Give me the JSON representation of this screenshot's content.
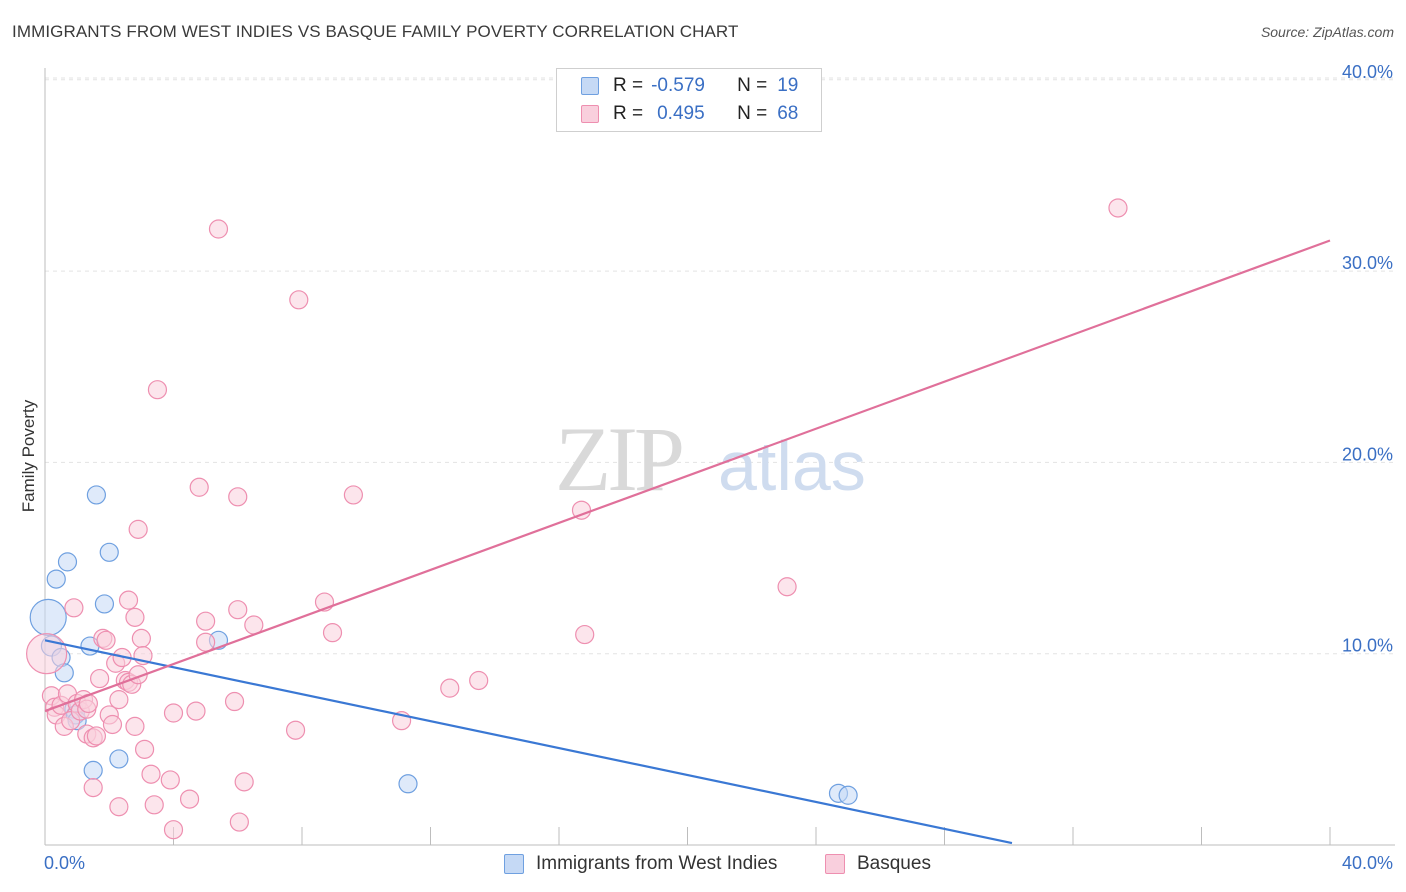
{
  "header": {
    "title": "IMMIGRANTS FROM WEST INDIES VS BASQUE FAMILY POVERTY CORRELATION CHART",
    "source": "Source: ZipAtlas.com"
  },
  "watermark": {
    "zip": "ZIP",
    "atlas": "atlas"
  },
  "legend": {
    "rows": [
      {
        "r_label": "R =",
        "r_value": "-0.579",
        "n_label": "N =",
        "n_value": "19",
        "color": "#6fa0e0",
        "fill": "#c5d9f5"
      },
      {
        "r_label": "R =",
        "r_value": "0.495",
        "n_label": "N =",
        "n_value": "68",
        "color": "#ee8fb0",
        "fill": "#f9cfdd"
      }
    ]
  },
  "bottom_legend": {
    "items": [
      {
        "label": "Immigrants from West Indies",
        "color": "#6fa0e0",
        "fill": "#c5d9f5"
      },
      {
        "label": "Basques",
        "color": "#ee8fb0",
        "fill": "#f9cfdd"
      }
    ]
  },
  "chart_data": {
    "type": "scatter",
    "title": "IMMIGRANTS FROM WEST INDIES VS BASQUE FAMILY POVERTY CORRELATION CHART",
    "xlabel": "",
    "ylabel": "Family Poverty",
    "xlim": [
      0,
      40
    ],
    "ylim": [
      0,
      40
    ],
    "x_tick_labels": [
      "0.0%",
      "40.0%"
    ],
    "y_ticks": [
      10,
      20,
      30,
      40
    ],
    "y_tick_labels": [
      "10.0%",
      "20.0%",
      "30.0%",
      "40.0%"
    ],
    "grid": true,
    "series": [
      {
        "name": "Immigrants from West Indies",
        "color": "#3a78d4",
        "fill": "#c5d9f5",
        "stroke": "#6fa0e0",
        "points": [
          [
            0.1,
            11.9,
            18
          ],
          [
            0.2,
            10.4,
            10
          ],
          [
            0.35,
            13.9,
            9
          ],
          [
            0.5,
            9.8,
            9
          ],
          [
            0.6,
            9.0,
            9
          ],
          [
            0.7,
            14.8,
            9
          ],
          [
            0.9,
            7.1,
            9
          ],
          [
            0.95,
            6.8,
            9
          ],
          [
            1.0,
            6.5,
            9
          ],
          [
            1.4,
            10.4,
            9
          ],
          [
            1.5,
            3.9,
            9
          ],
          [
            1.6,
            18.3,
            9
          ],
          [
            1.85,
            12.6,
            9
          ],
          [
            2.0,
            15.3,
            9
          ],
          [
            2.3,
            4.5,
            9
          ],
          [
            5.4,
            10.7,
            9
          ],
          [
            11.3,
            3.2,
            9
          ],
          [
            24.7,
            2.7,
            9
          ],
          [
            25.0,
            2.6,
            9
          ]
        ],
        "trend": {
          "x": [
            0,
            30.1
          ],
          "y": [
            10.7,
            0.1
          ]
        }
      },
      {
        "name": "Basques",
        "color": "#e0709a",
        "fill": "#f9cfdd",
        "stroke": "#ee8fb0",
        "points": [
          [
            0.05,
            10.0,
            20
          ],
          [
            0.2,
            7.8,
            9
          ],
          [
            0.3,
            7.2,
            9
          ],
          [
            0.35,
            6.8,
            9
          ],
          [
            0.5,
            7.3,
            9
          ],
          [
            0.6,
            6.2,
            9
          ],
          [
            0.7,
            7.9,
            9
          ],
          [
            0.8,
            6.5,
            9
          ],
          [
            0.9,
            12.4,
            9
          ],
          [
            1.0,
            7.4,
            9
          ],
          [
            1.1,
            7.0,
            9
          ],
          [
            1.2,
            7.6,
            9
          ],
          [
            1.3,
            7.1,
            9
          ],
          [
            1.3,
            5.8,
            9
          ],
          [
            1.35,
            7.4,
            9
          ],
          [
            1.5,
            5.6,
            9
          ],
          [
            1.5,
            3.0,
            9
          ],
          [
            1.6,
            5.7,
            9
          ],
          [
            1.7,
            8.7,
            9
          ],
          [
            1.8,
            10.8,
            9
          ],
          [
            1.9,
            10.7,
            9
          ],
          [
            2.0,
            6.8,
            9
          ],
          [
            2.1,
            6.3,
            9
          ],
          [
            2.2,
            9.5,
            9
          ],
          [
            2.3,
            7.6,
            9
          ],
          [
            2.3,
            2.0,
            9
          ],
          [
            2.4,
            9.8,
            9
          ],
          [
            2.5,
            8.6,
            9
          ],
          [
            2.6,
            8.5,
            9
          ],
          [
            2.6,
            12.8,
            9
          ],
          [
            2.7,
            8.4,
            9
          ],
          [
            2.8,
            11.9,
            9
          ],
          [
            2.8,
            6.2,
            9
          ],
          [
            2.9,
            8.9,
            9
          ],
          [
            2.9,
            16.5,
            9
          ],
          [
            3.0,
            10.8,
            9
          ],
          [
            3.05,
            9.9,
            9
          ],
          [
            3.1,
            5.0,
            9
          ],
          [
            3.3,
            3.7,
            9
          ],
          [
            3.4,
            2.1,
            9
          ],
          [
            3.5,
            23.8,
            9
          ],
          [
            3.9,
            3.4,
            9
          ],
          [
            4.0,
            0.8,
            9
          ],
          [
            4.0,
            6.9,
            9
          ],
          [
            4.5,
            2.4,
            9
          ],
          [
            4.7,
            7.0,
            9
          ],
          [
            4.8,
            18.7,
            9
          ],
          [
            5.0,
            11.7,
            9
          ],
          [
            5.0,
            10.6,
            9
          ],
          [
            5.4,
            32.2,
            9
          ],
          [
            5.9,
            7.5,
            9
          ],
          [
            6.0,
            12.3,
            9
          ],
          [
            6.0,
            18.2,
            9
          ],
          [
            6.05,
            1.2,
            9
          ],
          [
            6.2,
            3.3,
            9
          ],
          [
            6.5,
            11.5,
            9
          ],
          [
            7.8,
            6.0,
            9
          ],
          [
            7.9,
            28.5,
            9
          ],
          [
            8.7,
            12.7,
            9
          ],
          [
            8.95,
            11.1,
            9
          ],
          [
            9.6,
            18.3,
            9
          ],
          [
            11.1,
            6.5,
            9
          ],
          [
            12.6,
            8.2,
            9
          ],
          [
            13.5,
            8.6,
            9
          ],
          [
            16.7,
            17.5,
            9
          ],
          [
            16.8,
            11.0,
            9
          ],
          [
            23.1,
            13.5,
            9
          ],
          [
            33.4,
            33.3,
            9
          ]
        ],
        "trend": {
          "x": [
            0,
            40
          ],
          "y": [
            7.0,
            31.6
          ]
        }
      }
    ]
  }
}
